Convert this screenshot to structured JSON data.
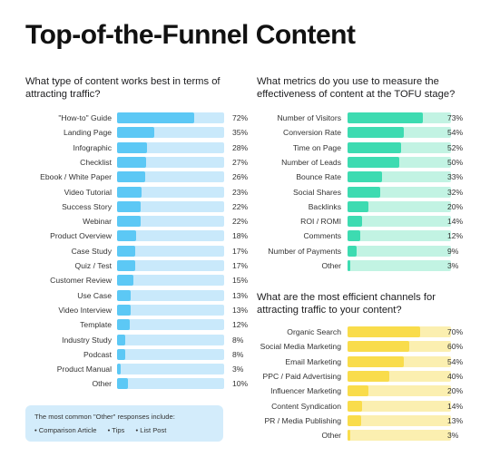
{
  "title": "Top-of-the-Funnel Content",
  "colors": {
    "blue_fill": "#5cc8f5",
    "blue_track": "#c9e9fb",
    "green_fill": "#3ddbb1",
    "green_track": "#c2f3e3",
    "yellow_fill": "#f9dc4b",
    "yellow_track": "#fbefb0"
  },
  "note": {
    "title": "The most common \"Other\" responses include:",
    "items": [
      "Comparison Article",
      "Tips",
      "List Post"
    ]
  },
  "chart_data": [
    {
      "type": "bar",
      "orientation": "horizontal",
      "title": "What type of content works best in terms of attracting traffic?",
      "categories": [
        "\"How-to\" Guide",
        "Landing Page",
        "Infographic",
        "Checklist",
        "Ebook / White Paper",
        "Video Tutorial",
        "Success Story",
        "Webinar",
        "Product Overview",
        "Case Study",
        "Quiz / Test",
        "Customer Review",
        "Use Case",
        "Video Interview",
        "Template",
        "Industry Study",
        "Podcast",
        "Product Manual",
        "Other"
      ],
      "values": [
        72,
        35,
        28,
        27,
        26,
        23,
        22,
        22,
        18,
        17,
        17,
        15,
        13,
        13,
        12,
        8,
        8,
        3,
        10
      ],
      "value_labels": [
        "72%",
        "35%",
        "28%",
        "27%",
        "26%",
        "23%",
        "22%",
        "22%",
        "18%",
        "17%",
        "17%",
        "15%",
        "13%",
        "13%",
        "12%",
        "8%",
        "8%",
        "3%",
        "10%"
      ],
      "xlim": [
        0,
        100
      ]
    },
    {
      "type": "bar",
      "orientation": "horizontal",
      "title": "What metrics do you use to measure the effectiveness of content at the TOFU stage?",
      "categories": [
        "Number of Visitors",
        "Conversion Rate",
        "Time on Page",
        "Number of Leads",
        "Bounce Rate",
        "Social Shares",
        "Backlinks",
        "ROI / ROMI",
        "Comments",
        "Number of Payments",
        "Other"
      ],
      "values": [
        73,
        54,
        52,
        50,
        33,
        32,
        20,
        14,
        12,
        9,
        3
      ],
      "value_labels": [
        "73%",
        "54%",
        "52%",
        "50%",
        "33%",
        "32%",
        "20%",
        "14%",
        "12%",
        "9%",
        "3%"
      ],
      "xlim": [
        0,
        100
      ]
    },
    {
      "type": "bar",
      "orientation": "horizontal",
      "title": "What are the most efficient channels for attracting traffic to your content?",
      "categories": [
        "Organic Search",
        "Social Media Marketing",
        "Email Marketing",
        "PPC / Paid Advertising",
        "Influencer Marketing",
        "Content Syndication",
        "PR / Media Publishing",
        "Other"
      ],
      "values": [
        70,
        60,
        54,
        40,
        20,
        14,
        13,
        3
      ],
      "value_labels": [
        "70%",
        "60%",
        "54%",
        "40%",
        "20%",
        "14%",
        "13%",
        "3%"
      ],
      "xlim": [
        0,
        100
      ]
    }
  ]
}
